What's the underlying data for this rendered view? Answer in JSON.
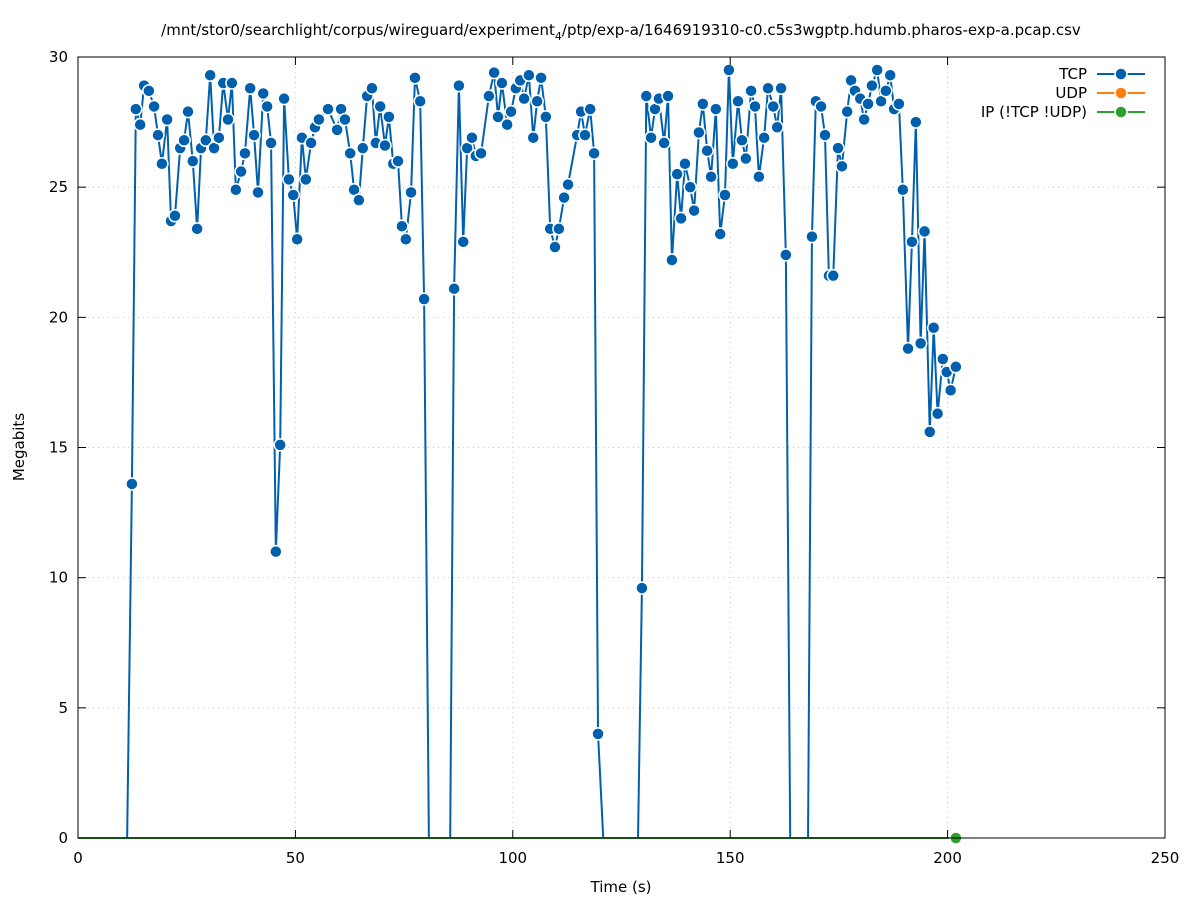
{
  "chart_data": {
    "type": "line",
    "title_prefix": "/mnt/stor0/searchlight/corpus/wireguard/experiment",
    "title_subscript": "4",
    "title_suffix": "/ptp/exp-a/1646919310-c0.c5s3wgptp.hdumb.pharos-exp-a.pcap.csv",
    "xlabel": "Time (s)",
    "ylabel": "Megabits",
    "xlim": [
      0,
      250
    ],
    "ylim": [
      0,
      30
    ],
    "xticks": [
      0,
      50,
      100,
      150,
      200,
      250
    ],
    "yticks": [
      0,
      5,
      10,
      15,
      20,
      25,
      30
    ],
    "grid": true,
    "legend_position": "top-right",
    "series": [
      {
        "name": "TCP",
        "color": "#0060ad",
        "points": [
          [
            11.3,
            0
          ],
          [
            12.4,
            13.6
          ],
          [
            13.3,
            28.0
          ],
          [
            14.3,
            27.4
          ],
          [
            15.2,
            28.9
          ],
          [
            16.3,
            28.7
          ],
          [
            17.5,
            28.1
          ],
          [
            18.4,
            27.0
          ],
          [
            19.3,
            25.9
          ],
          [
            20.5,
            27.6
          ],
          [
            21.4,
            23.7
          ],
          [
            22.3,
            23.9
          ],
          [
            23.5,
            26.5
          ],
          [
            24.4,
            26.8
          ],
          [
            25.3,
            27.9
          ],
          [
            26.4,
            26.0
          ],
          [
            27.4,
            23.4
          ],
          [
            28.3,
            26.5
          ],
          [
            29.4,
            26.8
          ],
          [
            30.4,
            29.3
          ],
          [
            31.3,
            26.5
          ],
          [
            32.4,
            26.9
          ],
          [
            33.4,
            29.0
          ],
          [
            34.5,
            27.6
          ],
          [
            35.4,
            29.0
          ],
          [
            36.3,
            24.9
          ],
          [
            37.5,
            25.6
          ],
          [
            38.4,
            26.3
          ],
          [
            39.6,
            28.8
          ],
          [
            40.5,
            27.0
          ],
          [
            41.4,
            24.8
          ],
          [
            42.6,
            28.6
          ],
          [
            43.5,
            28.1
          ],
          [
            44.4,
            26.7
          ],
          [
            45.5,
            11.0
          ],
          [
            46.5,
            15.1
          ],
          [
            47.4,
            28.4
          ],
          [
            48.5,
            25.3
          ],
          [
            49.5,
            24.7
          ],
          [
            50.4,
            23.0
          ],
          [
            51.5,
            26.9
          ],
          [
            52.4,
            25.3
          ],
          [
            53.6,
            26.7
          ],
          [
            54.5,
            27.3
          ],
          [
            55.4,
            27.6
          ],
          [
            57.5,
            28.0
          ],
          [
            59.6,
            27.2
          ],
          [
            60.5,
            28.0
          ],
          [
            61.4,
            27.6
          ],
          [
            62.6,
            26.3
          ],
          [
            63.5,
            24.9
          ],
          [
            64.6,
            24.5
          ],
          [
            65.5,
            26.5
          ],
          [
            66.5,
            28.5
          ],
          [
            67.6,
            28.8
          ],
          [
            68.5,
            26.7
          ],
          [
            69.5,
            28.1
          ],
          [
            70.6,
            26.6
          ],
          [
            71.5,
            27.7
          ],
          [
            72.5,
            25.9
          ],
          [
            73.6,
            26.0
          ],
          [
            74.5,
            23.5
          ],
          [
            75.4,
            23.0
          ],
          [
            76.6,
            24.8
          ],
          [
            77.5,
            29.2
          ],
          [
            78.7,
            28.3
          ],
          [
            79.6,
            20.7
          ],
          [
            80.7,
            0
          ],
          [
            85.6,
            0
          ],
          [
            86.5,
            21.1
          ],
          [
            87.6,
            28.9
          ],
          [
            88.6,
            22.9
          ],
          [
            89.5,
            26.5
          ],
          [
            90.6,
            26.9
          ],
          [
            91.5,
            26.2
          ],
          [
            92.7,
            26.3
          ],
          [
            94.5,
            28.5
          ],
          [
            95.7,
            29.4
          ],
          [
            96.6,
            27.7
          ],
          [
            97.5,
            29.0
          ],
          [
            98.7,
            27.4
          ],
          [
            99.6,
            27.9
          ],
          [
            100.7,
            28.8
          ],
          [
            101.7,
            29.1
          ],
          [
            102.6,
            28.4
          ],
          [
            103.7,
            29.3
          ],
          [
            104.7,
            26.9
          ],
          [
            105.6,
            28.3
          ],
          [
            106.5,
            29.2
          ],
          [
            107.6,
            27.7
          ],
          [
            108.6,
            23.4
          ],
          [
            109.7,
            22.7
          ],
          [
            110.6,
            23.4
          ],
          [
            111.8,
            24.6
          ],
          [
            112.7,
            25.1
          ],
          [
            114.8,
            27.0
          ],
          [
            115.7,
            27.9
          ],
          [
            116.6,
            27.0
          ],
          [
            117.8,
            28.0
          ],
          [
            118.7,
            26.3
          ],
          [
            119.6,
            4.0
          ],
          [
            120.8,
            0
          ],
          [
            128.8,
            0
          ],
          [
            129.7,
            9.6
          ],
          [
            130.7,
            28.5
          ],
          [
            131.8,
            26.9
          ],
          [
            132.7,
            28.0
          ],
          [
            133.6,
            28.4
          ],
          [
            134.8,
            26.7
          ],
          [
            135.7,
            28.5
          ],
          [
            136.6,
            22.2
          ],
          [
            137.8,
            25.5
          ],
          [
            138.7,
            23.8
          ],
          [
            139.6,
            25.9
          ],
          [
            140.8,
            25.0
          ],
          [
            141.7,
            24.1
          ],
          [
            142.8,
            27.1
          ],
          [
            143.7,
            28.2
          ],
          [
            144.7,
            26.4
          ],
          [
            145.6,
            25.4
          ],
          [
            146.7,
            28.0
          ],
          [
            147.7,
            23.2
          ],
          [
            148.8,
            24.7
          ],
          [
            149.7,
            29.5
          ],
          [
            150.6,
            25.9
          ],
          [
            151.8,
            28.3
          ],
          [
            152.7,
            26.8
          ],
          [
            153.6,
            26.1
          ],
          [
            154.8,
            28.7
          ],
          [
            155.7,
            28.1
          ],
          [
            156.6,
            25.4
          ],
          [
            157.8,
            26.9
          ],
          [
            158.7,
            28.8
          ],
          [
            159.9,
            28.1
          ],
          [
            160.8,
            27.3
          ],
          [
            161.7,
            28.8
          ],
          [
            162.8,
            22.4
          ],
          [
            163.8,
            0
          ],
          [
            167.9,
            0
          ],
          [
            168.8,
            23.1
          ],
          [
            169.7,
            28.3
          ],
          [
            170.9,
            28.1
          ],
          [
            171.8,
            27.0
          ],
          [
            172.7,
            21.6
          ],
          [
            173.7,
            21.6
          ],
          [
            174.8,
            26.5
          ],
          [
            175.7,
            25.8
          ],
          [
            176.9,
            27.9
          ],
          [
            177.8,
            29.1
          ],
          [
            178.7,
            28.7
          ],
          [
            179.9,
            28.4
          ],
          [
            180.8,
            27.6
          ],
          [
            181.7,
            28.2
          ],
          [
            182.6,
            28.9
          ],
          [
            183.8,
            29.5
          ],
          [
            184.7,
            28.3
          ],
          [
            185.8,
            28.7
          ],
          [
            186.8,
            29.3
          ],
          [
            187.7,
            28.0
          ],
          [
            188.8,
            28.2
          ],
          [
            189.7,
            24.9
          ],
          [
            190.9,
            18.8
          ],
          [
            191.8,
            22.9
          ],
          [
            192.7,
            27.5
          ],
          [
            193.8,
            19.0
          ],
          [
            194.7,
            23.3
          ],
          [
            195.9,
            15.6
          ],
          [
            196.8,
            19.6
          ],
          [
            197.7,
            16.3
          ],
          [
            198.9,
            18.4
          ],
          [
            199.8,
            17.9
          ],
          [
            200.7,
            17.2
          ],
          [
            201.9,
            18.1
          ]
        ]
      },
      {
        "name": "UDP",
        "color": "#ff7f0e",
        "points": []
      },
      {
        "name": "IP (!TCP  !UDP)",
        "color": "#2ca02c",
        "points": [
          [
            0,
            0
          ],
          [
            201.9,
            0
          ]
        ]
      }
    ]
  }
}
